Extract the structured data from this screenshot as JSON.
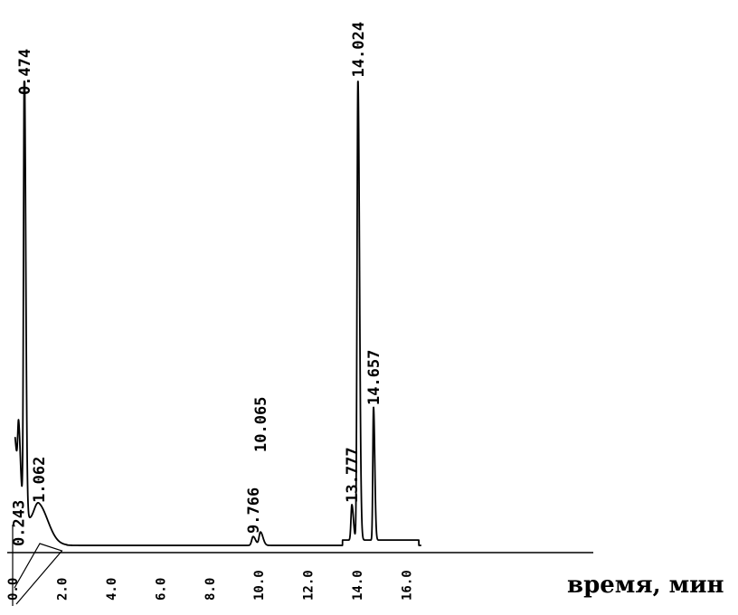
{
  "chart_data": {
    "type": "line",
    "xlabel": "время, мин",
    "ylabel": "",
    "title": "",
    "xlim": [
      0,
      18
    ],
    "x_ticks": [
      "0.0",
      "2.0",
      "4.0",
      "6.0",
      "8.0",
      "10.0",
      "12.0",
      "14.0",
      "16.0"
    ],
    "x_tick_values": [
      0,
      2,
      4,
      6,
      8,
      10,
      12,
      14,
      16
    ],
    "peaks": [
      {
        "rt": 0.243,
        "label": "0.243",
        "height": 0.12
      },
      {
        "rt": 0.474,
        "label": "0.474",
        "height": 1.0
      },
      {
        "rt": 1.062,
        "label": "1.062",
        "height": 0.08
      },
      {
        "rt": 9.766,
        "label": "9.766",
        "height": 0.02
      },
      {
        "rt": 10.065,
        "label": "10.065",
        "height": 0.03
      },
      {
        "rt": 13.777,
        "label": "13.777",
        "height": 0.08
      },
      {
        "rt": 14.024,
        "label": "14.024",
        "height": 1.04
      },
      {
        "rt": 14.657,
        "label": "14.657",
        "height": 0.3
      }
    ],
    "grid": false,
    "legend": "none"
  }
}
